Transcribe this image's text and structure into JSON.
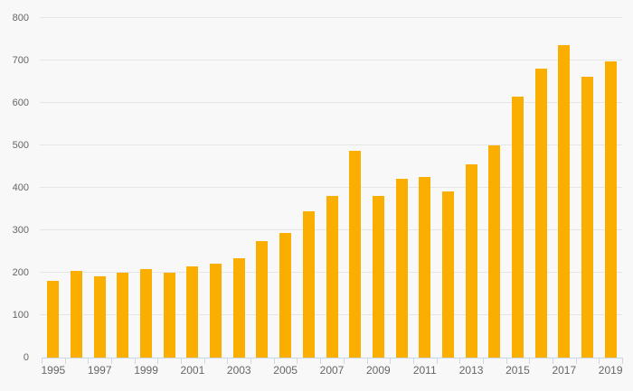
{
  "chart_data": {
    "type": "bar",
    "title": "",
    "xlabel": "",
    "ylabel": "",
    "categories": [
      "1995",
      "1996",
      "1997",
      "1998",
      "1999",
      "2000",
      "2001",
      "2002",
      "2003",
      "2004",
      "2005",
      "2006",
      "2007",
      "2008",
      "2009",
      "2010",
      "2011",
      "2012",
      "2013",
      "2014",
      "2015",
      "2016",
      "2017",
      "2018",
      "2019"
    ],
    "values": [
      181,
      204,
      191,
      200,
      209,
      201,
      215,
      222,
      234,
      275,
      294,
      345,
      381,
      488,
      380,
      421,
      426,
      391,
      455,
      500,
      614,
      681,
      737,
      662,
      698
    ],
    "ylim": [
      0,
      800
    ],
    "y_ticks": [
      0,
      100,
      200,
      300,
      400,
      500,
      600,
      700,
      800
    ],
    "x_labels_shown": [
      "1995",
      "1997",
      "1999",
      "2001",
      "2003",
      "2005",
      "2007",
      "2009",
      "2011",
      "2013",
      "2015",
      "2017",
      "2019"
    ],
    "x_label_step": 2,
    "grid": true,
    "legend": false,
    "colors": {
      "bar": "#f9ae00",
      "background": "#f8f8f8",
      "gridline": "#e6e6e6",
      "axis_line": "#ccd6eb",
      "tick": "#ccd6eb",
      "label": "#666666"
    }
  }
}
